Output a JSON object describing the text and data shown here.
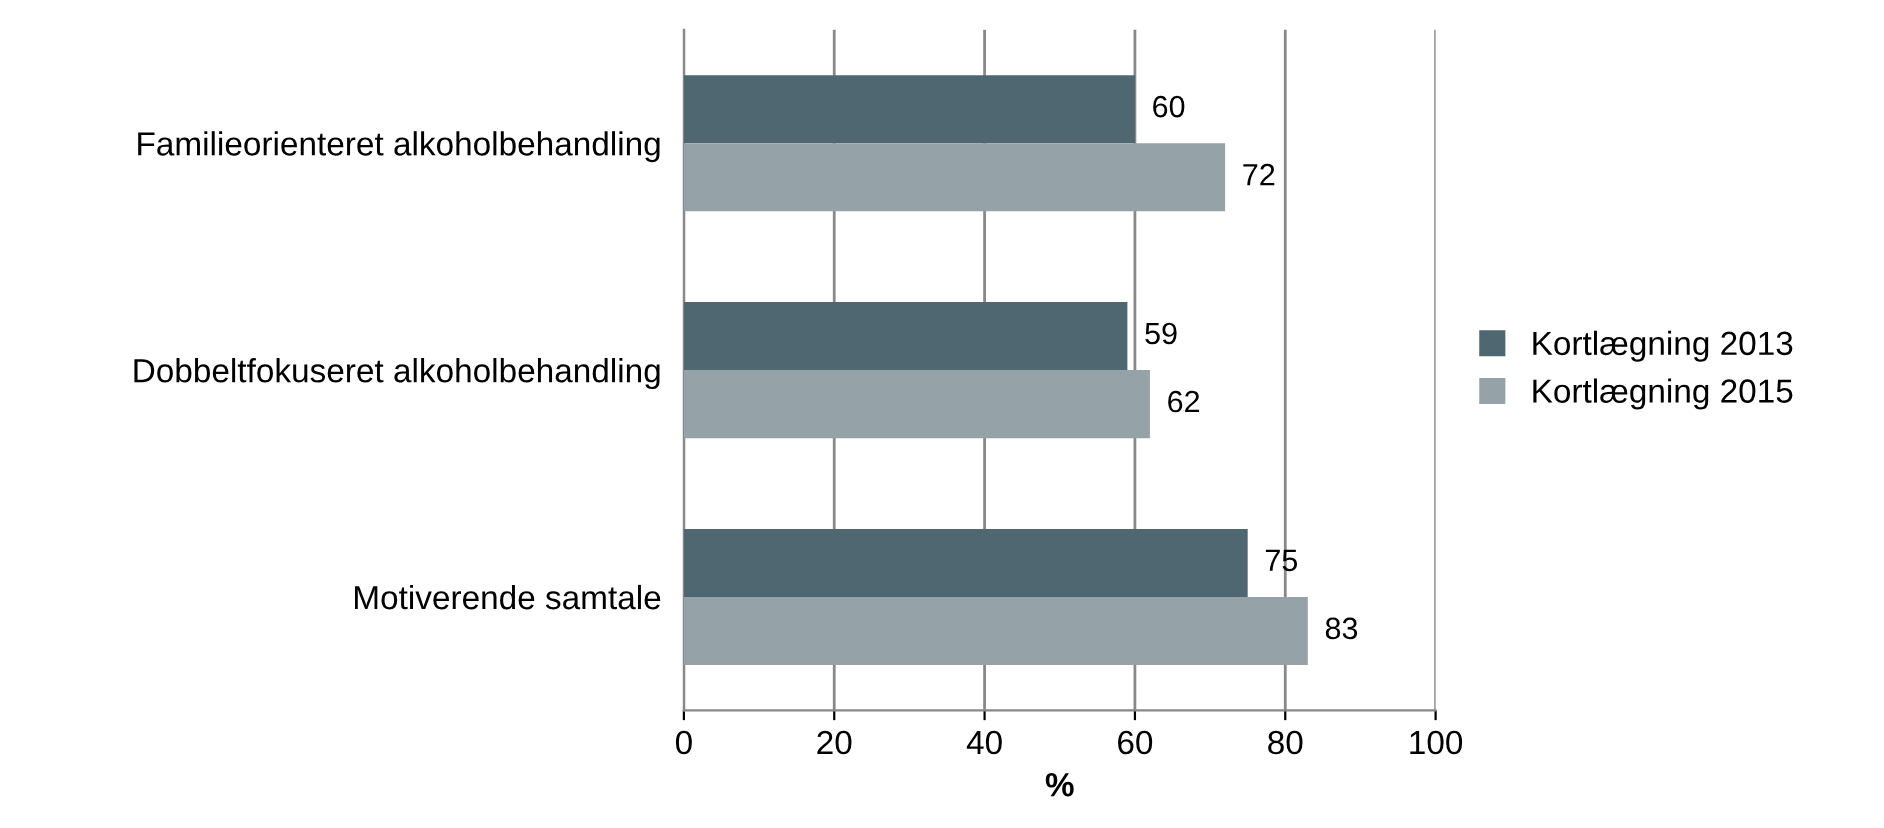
{
  "chart_data": {
    "type": "bar",
    "orientation": "horizontal",
    "xlabel": "%",
    "categories": [
      "Familieorienteret alkoholbehandling",
      "Dobbeltfokuseret alkoholbehandling",
      "Motiverende samtale"
    ],
    "series": [
      {
        "name": "Kortlægning 2013",
        "color": "#4f6770",
        "values": [
          60,
          59,
          75
        ]
      },
      {
        "name": "Kortlægning 2015",
        "color": "#95a3a8",
        "values": [
          72,
          62,
          83
        ]
      }
    ],
    "xlim": [
      0,
      100
    ],
    "xticks": [
      0,
      20,
      40,
      60,
      80,
      100
    ],
    "grid": "x",
    "legend": "right",
    "data_labels": true
  }
}
